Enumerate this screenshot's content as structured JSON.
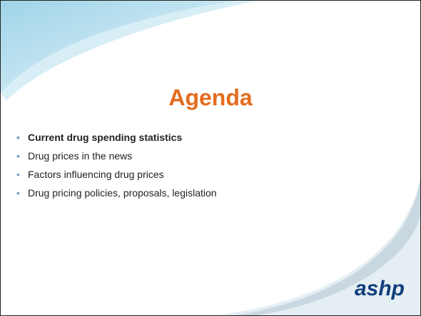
{
  "slide": {
    "title": "Agenda",
    "bullets": [
      "Current drug spending statistics",
      "Drug prices in the news",
      "Factors influencing drug prices",
      "Drug pricing policies, proposals, legislation"
    ],
    "logo": "ashp"
  }
}
